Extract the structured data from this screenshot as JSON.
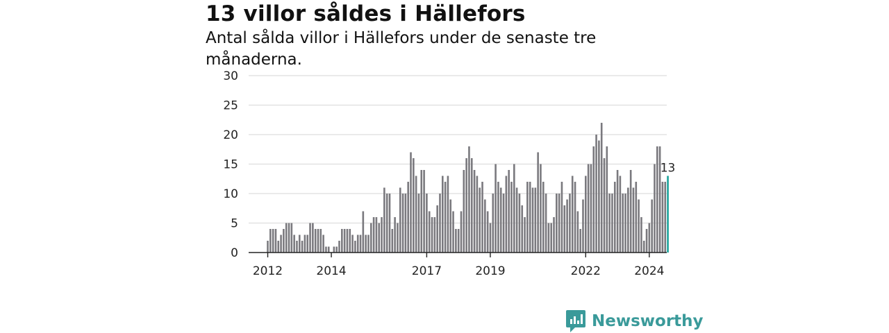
{
  "header": {
    "title": "13 villor såldes i Hällefors",
    "subtitle": "Antal sålda villor i Hällefors under de senaste tre månaderna."
  },
  "colors": {
    "bar": "#7a797e",
    "highlight": "#1aa39a",
    "grid": "#dddddd",
    "brand": "#3a9a9a"
  },
  "brand": {
    "name": "Newsworthy",
    "icon": "newsworthy-logo-icon"
  },
  "chart_data": {
    "type": "bar",
    "title": "13 villor såldes i Hällefors",
    "ylim": [
      0,
      30
    ],
    "yticks": [
      0,
      5,
      10,
      15,
      20,
      25,
      30
    ],
    "xticks": [
      "2012",
      "2014",
      "2017",
      "2019",
      "2022",
      "2024"
    ],
    "grid": true,
    "start": "2012-01",
    "frequency": "monthly",
    "values": [
      2,
      4,
      4,
      4,
      2,
      3,
      4,
      5,
      5,
      5,
      3,
      2,
      3,
      2,
      3,
      3,
      5,
      5,
      4,
      4,
      4,
      3,
      1,
      1,
      0,
      1,
      1,
      2,
      4,
      4,
      4,
      4,
      3,
      2,
      3,
      3,
      7,
      3,
      3,
      5,
      6,
      6,
      5,
      6,
      11,
      10,
      10,
      4,
      6,
      5,
      11,
      10,
      10,
      12,
      17,
      16,
      13,
      10,
      14,
      14,
      10,
      7,
      6,
      6,
      8,
      10,
      13,
      12,
      13,
      9,
      7,
      4,
      4,
      7,
      14,
      16,
      18,
      16,
      14,
      13,
      11,
      12,
      9,
      7,
      5,
      10,
      15,
      12,
      11,
      10,
      13,
      14,
      12,
      15,
      11,
      10,
      8,
      6,
      12,
      12,
      11,
      11,
      17,
      15,
      12,
      10,
      5,
      5,
      6,
      10,
      10,
      12,
      8,
      9,
      10,
      13,
      12,
      7,
      4,
      9,
      13,
      15,
      15,
      18,
      20,
      19,
      22,
      16,
      18,
      10,
      10,
      12,
      14,
      13,
      10,
      10,
      11,
      14,
      11,
      12,
      9,
      6,
      2,
      4,
      5,
      9,
      15,
      18,
      18,
      12,
      12,
      13
    ],
    "highlight": {
      "value": 13,
      "label": "13"
    }
  }
}
